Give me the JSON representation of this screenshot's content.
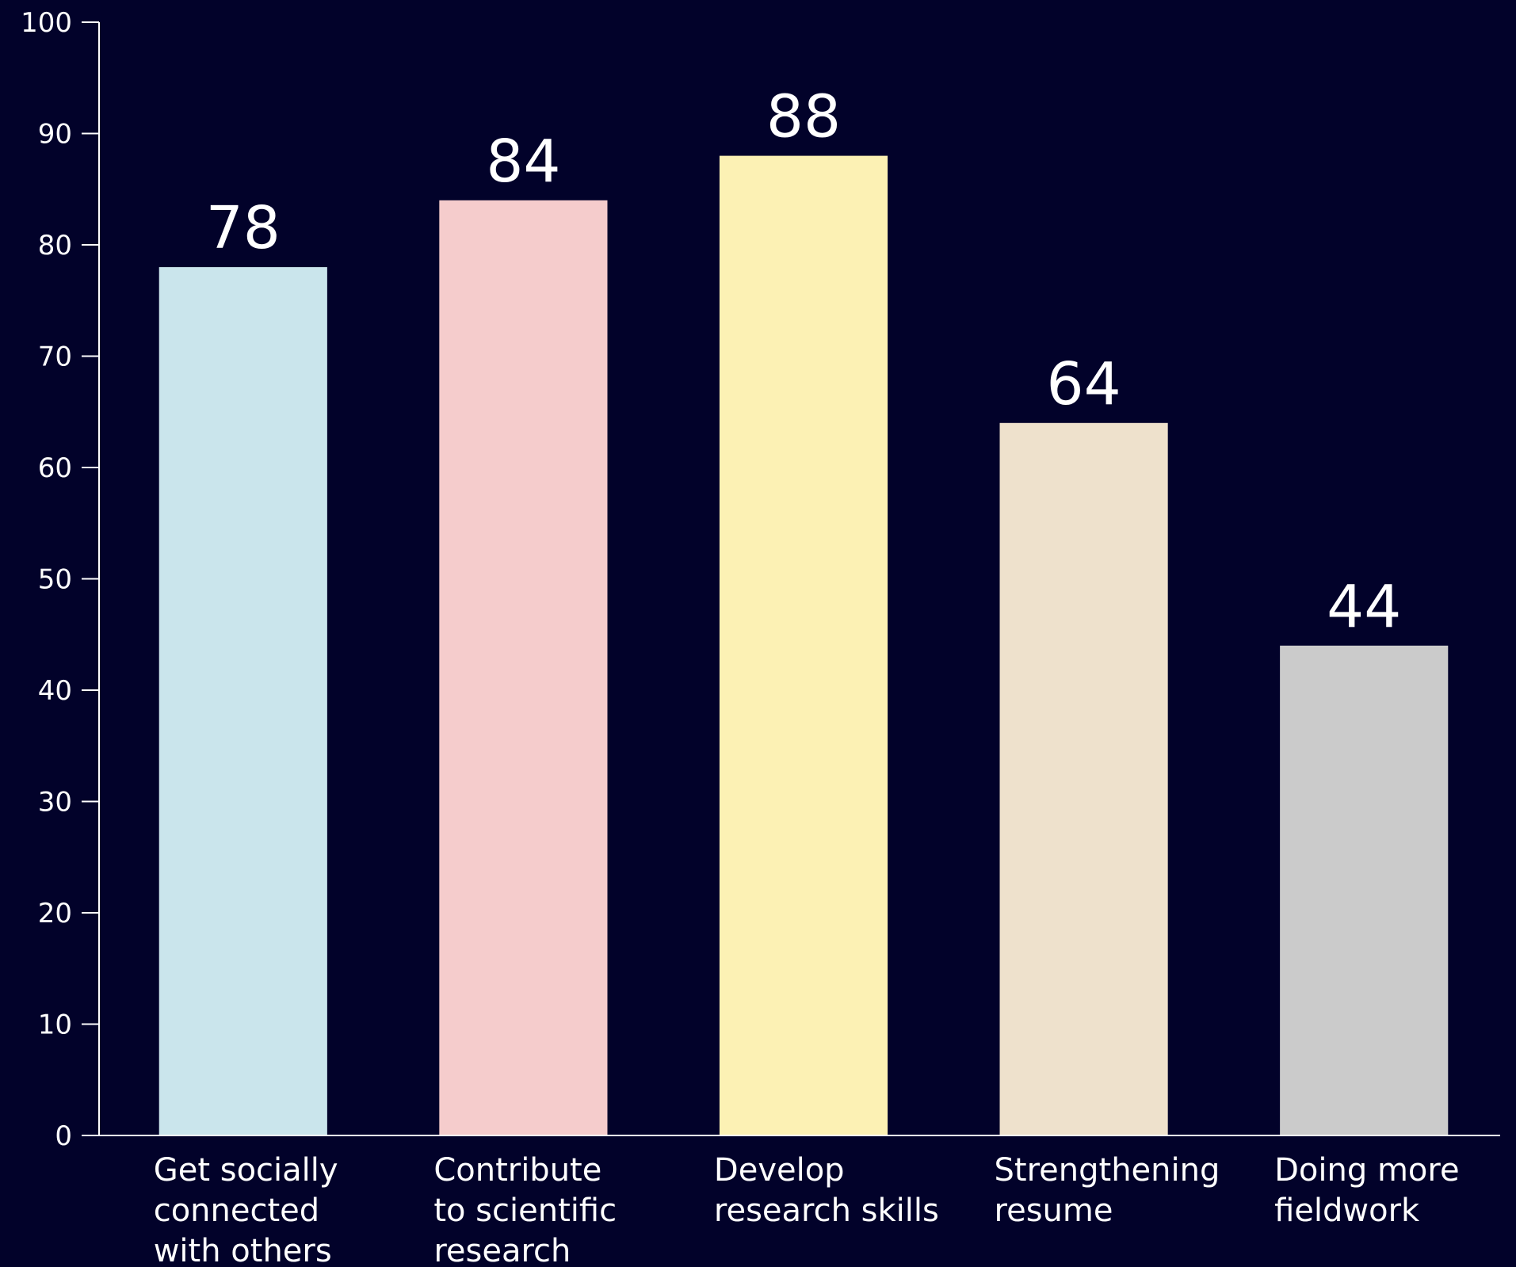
{
  "chart_data": {
    "type": "bar",
    "categories": [
      [
        "Get socially",
        "connected",
        "with others"
      ],
      [
        "Contribute",
        "to scientific",
        "research"
      ],
      [
        "Develop",
        "research skills"
      ],
      [
        "Strengthening",
        "resume"
      ],
      [
        "Doing more",
        "fieldwork"
      ]
    ],
    "values": [
      78,
      84,
      88,
      64,
      44
    ],
    "value_labels": [
      "78",
      "84",
      "88",
      "64",
      "44"
    ],
    "colors": [
      "#cae5ec",
      "#f5cccc",
      "#fcf1b4",
      "#eee1cc",
      "#cbcbcb"
    ],
    "ylim": [
      0,
      100
    ],
    "yticks": [
      0,
      10,
      20,
      30,
      40,
      50,
      60,
      70,
      80,
      90,
      100
    ],
    "ytick_labels": [
      "0",
      "10",
      "20",
      "30",
      "40",
      "50",
      "60",
      "70",
      "80",
      "90",
      "100"
    ],
    "grid": false,
    "background": "#02022a",
    "title": "",
    "xlabel": "",
    "ylabel": ""
  }
}
